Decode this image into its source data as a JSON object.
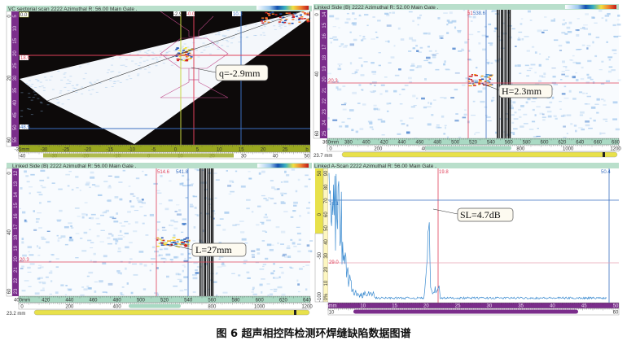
{
  "caption": "图 6   超声相控阵检测环焊缝缺陷数据图谱",
  "colors": {
    "title_bar": "#b9dfcb",
    "purple": "#7b2d8b",
    "olive": "#9aa920",
    "teal": "#a9d9c3",
    "yellow": "#e8e14a",
    "red_cursor": "#e0405a",
    "blue_cursor": "#3a6fc0",
    "yellow_cursor": "#c8d640"
  },
  "panels": {
    "sectorial": {
      "title": "VC sectorial scan 2222 Azimuthal  R: 56.00 Main Gate .",
      "cursor_labels": {
        "top_left": "0.0",
        "yellow": "-2.9",
        "red": "-0.0",
        "blue": "10.3",
        "red_h": "18.5",
        "blue_h": "48.5"
      },
      "callout": "q=-2.9mm",
      "ruler_top": [
        "-35mm",
        "-30",
        "-25",
        "-20",
        "-15",
        "-10",
        "-5",
        "0",
        "5",
        "10",
        "15",
        "20",
        "25",
        "b"
      ],
      "ruler_bottom": [
        "-40",
        "-30",
        "-20",
        "-10",
        "0",
        "10",
        "20",
        "30",
        "40",
        "50"
      ],
      "left_ticks": [
        "5",
        "10",
        "15",
        "20",
        "25",
        "30",
        "35",
        "40",
        "45",
        "50",
        "55"
      ],
      "left_outer": [
        "0",
        "20",
        "60"
      ]
    },
    "side_top": {
      "title": "Linked Side (B) 2222 Azimuthal  R: 52.00 Main Gate .",
      "cursor_labels": {
        "red": "51",
        "blue": "538.6",
        "red_h": "20.3"
      },
      "callout": "H=2.3mm",
      "ruler_top": [
        "360mm",
        "380",
        "400",
        "420",
        "440",
        "460",
        "480",
        "500",
        "520",
        "540",
        "560",
        "580",
        "600",
        "620",
        "640",
        "660",
        "680"
      ],
      "ruler_bottom": [
        "0",
        "200",
        "400",
        "600",
        "800",
        "1000",
        "1200"
      ],
      "left_ticks": [
        "14",
        "15",
        "16",
        "17",
        "18",
        "19",
        "20",
        "21",
        "22",
        "23",
        "24",
        "25"
      ],
      "left_outer": [
        "0",
        "40",
        "60"
      ],
      "index": "23.7 mm"
    },
    "side_bottom": {
      "title": "Linked Side (B) 2222 Azimuthal  R: 56.00 Main Gate .",
      "cursor_labels": {
        "red": "514.6",
        "blue": "541.8",
        "red_h": "20.3"
      },
      "callout": "L=27mm",
      "ruler_top": [
        "400mm",
        "420",
        "440",
        "460",
        "480",
        "500",
        "520",
        "540",
        "560",
        "580",
        "600",
        "620",
        "640"
      ],
      "ruler_bottom": [
        "0",
        "200",
        "400",
        "600",
        "800",
        "1000",
        "1200"
      ],
      "left_ticks": [
        "12",
        "13",
        "14",
        "15",
        "16",
        "17",
        "18",
        "19",
        "20",
        "21",
        "22",
        "23"
      ],
      "left_outer": [
        "0",
        "40",
        "60"
      ],
      "index": "23.2 mm"
    },
    "ascan": {
      "title": "Linked A-Scan 2222 Azimuthal  R: 56.00 Main Gate .",
      "cursor_labels": {
        "red": "19.8",
        "blue": "50.4",
        "blue_h": "76.1",
        "red_h": "29.0"
      },
      "callout": "SL=4.7dB",
      "ruler_top": [
        "5mm",
        "10",
        "15",
        "20",
        "25",
        "30",
        "35",
        "40",
        "45",
        "50"
      ],
      "ruler_bottom": [
        "10",
        "20",
        "30",
        "40",
        "50",
        "60"
      ],
      "left_ticks": [
        "90",
        "80",
        "70",
        "60",
        "50",
        "40",
        "30",
        "20",
        "10",
        "0%"
      ],
      "left_outer": [
        "50",
        "0",
        "-50",
        "-100"
      ]
    }
  }
}
